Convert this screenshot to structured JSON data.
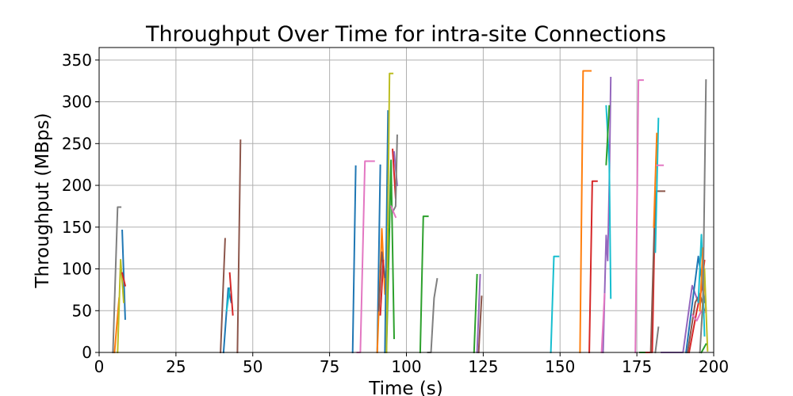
{
  "chart_data": {
    "type": "line",
    "title": "Throughput Over Time for intra-site Connections",
    "xlabel": "Time (s)",
    "ylabel": "Throughput (MBps)",
    "xlim": [
      0,
      200
    ],
    "ylim": [
      0,
      365
    ],
    "xticks": [
      0,
      25,
      50,
      75,
      100,
      125,
      150,
      175,
      200
    ],
    "yticks": [
      0,
      50,
      100,
      150,
      200,
      250,
      300,
      350
    ],
    "grid": true,
    "series": [
      {
        "color": "#1f77b4",
        "points": [
          [
            7.5,
            146
          ],
          [
            8.5,
            40
          ]
        ]
      },
      {
        "color": "#ff7f0e",
        "points": [
          [
            5,
            0
          ],
          [
            6.5,
            65
          ]
        ]
      },
      {
        "color": "#bcbd22",
        "points": [
          [
            6,
            0
          ],
          [
            7,
            111
          ],
          [
            8,
            60
          ]
        ]
      },
      {
        "color": "#7f7f7f",
        "points": [
          [
            4.5,
            0
          ],
          [
            6,
            174
          ],
          [
            7,
            174
          ]
        ]
      },
      {
        "color": "#d62728",
        "points": [
          [
            7.5,
            95
          ],
          [
            8.5,
            80
          ]
        ]
      },
      {
        "color": "#1f77b4",
        "points": [
          [
            40.5,
            0
          ],
          [
            42,
            77
          ],
          [
            43,
            60
          ]
        ]
      },
      {
        "color": "#17becf",
        "points": [
          [
            41.5,
            50
          ],
          [
            42.5,
            77
          ]
        ]
      },
      {
        "color": "#d62728",
        "points": [
          [
            42.5,
            95
          ],
          [
            43.5,
            45
          ]
        ]
      },
      {
        "color": "#8c564b",
        "points": [
          [
            39.5,
            0
          ],
          [
            41,
            136
          ]
        ]
      },
      {
        "color": "#8c564b",
        "points": [
          [
            45,
            0
          ],
          [
            46,
            254
          ]
        ]
      },
      {
        "color": "#1f77b4",
        "points": [
          [
            82.5,
            0
          ],
          [
            83.5,
            223
          ]
        ]
      },
      {
        "color": "#e377c2",
        "points": [
          [
            84,
            0
          ],
          [
            85,
            0
          ],
          [
            86.5,
            229
          ],
          [
            89.5,
            229
          ]
        ]
      },
      {
        "color": "#1f77b4",
        "points": [
          [
            90.5,
            0
          ],
          [
            91.5,
            224
          ]
        ]
      },
      {
        "color": "#ff7f0e",
        "points": [
          [
            90.5,
            0
          ],
          [
            92,
            148
          ],
          [
            93,
            70
          ]
        ]
      },
      {
        "color": "#8c564b",
        "points": [
          [
            91,
            50
          ],
          [
            92,
            120
          ],
          [
            93,
            90
          ]
        ]
      },
      {
        "color": "#d62728",
        "points": [
          [
            91.5,
            45
          ],
          [
            92.5,
            110
          ]
        ]
      },
      {
        "color": "#2ca02c",
        "points": [
          [
            93.5,
            0
          ],
          [
            95,
            230
          ],
          [
            96,
            17
          ]
        ]
      },
      {
        "color": "#1f77b4",
        "points": [
          [
            93,
            0
          ],
          [
            94,
            289
          ]
        ]
      },
      {
        "color": "#bcbd22",
        "points": [
          [
            93.5,
            0
          ],
          [
            94.5,
            334
          ],
          [
            95.5,
            334
          ]
        ]
      },
      {
        "color": "#d62728",
        "points": [
          [
            95.5,
            243
          ],
          [
            96.5,
            185
          ]
        ]
      },
      {
        "color": "#9467bd",
        "points": [
          [
            96,
            240
          ],
          [
            97,
            200
          ]
        ]
      },
      {
        "color": "#7f7f7f",
        "points": [
          [
            95.5,
            168
          ],
          [
            96.5,
            175
          ],
          [
            97,
            260
          ]
        ]
      },
      {
        "color": "#e377c2",
        "points": [
          [
            95,
            175
          ],
          [
            96.5,
            162
          ]
        ]
      },
      {
        "color": "#2ca02c",
        "points": [
          [
            104.5,
            0
          ],
          [
            105.5,
            163
          ],
          [
            107,
            163
          ]
        ]
      },
      {
        "color": "#7f7f7f",
        "points": [
          [
            107,
            0
          ],
          [
            108,
            0
          ],
          [
            109,
            65
          ],
          [
            110,
            88
          ]
        ]
      },
      {
        "color": "#2ca02c",
        "points": [
          [
            122,
            0
          ],
          [
            123,
            93
          ]
        ]
      },
      {
        "color": "#9467bd",
        "points": [
          [
            123,
            0
          ],
          [
            124,
            93
          ]
        ]
      },
      {
        "color": "#8c564b",
        "points": [
          [
            123.5,
            0
          ],
          [
            124.5,
            67
          ]
        ]
      },
      {
        "color": "#17becf",
        "points": [
          [
            147,
            0
          ],
          [
            148,
            115
          ],
          [
            149.5,
            115
          ]
        ]
      },
      {
        "color": "#ff7f0e",
        "points": [
          [
            156.5,
            0
          ],
          [
            157.5,
            337
          ],
          [
            160,
            337
          ]
        ]
      },
      {
        "color": "#d62728",
        "points": [
          [
            159.5,
            0
          ],
          [
            160.5,
            205
          ],
          [
            162,
            205
          ]
        ]
      },
      {
        "color": "#9467bd",
        "points": [
          [
            164,
            0
          ],
          [
            165,
            140
          ],
          [
            165.5,
            110
          ],
          [
            166,
            200
          ],
          [
            166.5,
            329
          ]
        ]
      },
      {
        "color": "#17becf",
        "points": [
          [
            165,
            295
          ],
          [
            166,
            226
          ],
          [
            166.5,
            65
          ]
        ]
      },
      {
        "color": "#2ca02c",
        "points": [
          [
            165,
            225
          ],
          [
            166,
            295
          ]
        ]
      },
      {
        "color": "#e377c2",
        "points": [
          [
            163.5,
            0
          ],
          [
            164.5,
            70
          ]
        ]
      },
      {
        "color": "#e377c2",
        "points": [
          [
            174.5,
            0
          ],
          [
            175.5,
            326
          ],
          [
            177,
            326
          ]
        ]
      },
      {
        "color": "#2ca02c",
        "points": [
          [
            176,
            0
          ],
          [
            178,
            0
          ]
        ]
      },
      {
        "color": "#d62728",
        "points": [
          [
            178,
            0
          ],
          [
            180,
            0
          ],
          [
            181,
            190
          ]
        ]
      },
      {
        "color": "#8c564b",
        "points": [
          [
            179.5,
            0
          ],
          [
            181,
            193
          ],
          [
            184,
            193
          ]
        ]
      },
      {
        "color": "#17becf",
        "points": [
          [
            181,
            120
          ],
          [
            182,
            280
          ]
        ]
      },
      {
        "color": "#ff7f0e",
        "points": [
          [
            180.5,
            150
          ],
          [
            181.5,
            262
          ]
        ]
      },
      {
        "color": "#e377c2",
        "points": [
          [
            181.5,
            224
          ],
          [
            183.5,
            224
          ]
        ]
      },
      {
        "color": "#7f7f7f",
        "points": [
          [
            181,
            0
          ],
          [
            182,
            30
          ]
        ]
      },
      {
        "color": "#9467bd",
        "points": [
          [
            183,
            0
          ],
          [
            190,
            0
          ],
          [
            193,
            80
          ],
          [
            195,
            60
          ]
        ]
      },
      {
        "color": "#1f77b4",
        "points": [
          [
            191,
            0
          ],
          [
            195,
            115
          ],
          [
            196,
            90
          ],
          [
            197,
            60
          ]
        ]
      },
      {
        "color": "#8c564b",
        "points": [
          [
            191.5,
            0
          ],
          [
            194,
            60
          ],
          [
            195.5,
            70
          ],
          [
            197,
            50
          ]
        ]
      },
      {
        "color": "#d62728",
        "points": [
          [
            192,
            0
          ],
          [
            194.5,
            50
          ],
          [
            196,
            75
          ],
          [
            197,
            110
          ]
        ]
      },
      {
        "color": "#e377c2",
        "points": [
          [
            193,
            45
          ],
          [
            194.5,
            38
          ],
          [
            196,
            50
          ],
          [
            197,
            48
          ]
        ]
      },
      {
        "color": "#17becf",
        "points": [
          [
            195,
            60
          ],
          [
            196,
            141
          ],
          [
            197,
            20
          ]
        ]
      },
      {
        "color": "#ff7f0e",
        "points": [
          [
            195.5,
            50
          ],
          [
            196.5,
            125
          ],
          [
            197.5,
            50
          ]
        ]
      },
      {
        "color": "#bcbd22",
        "points": [
          [
            196,
            30
          ],
          [
            197,
            100
          ],
          [
            198,
            2
          ]
        ]
      },
      {
        "color": "#7f7f7f",
        "points": [
          [
            195.5,
            0
          ],
          [
            196.5,
            60
          ],
          [
            197.5,
            326
          ]
        ]
      },
      {
        "color": "#2ca02c",
        "points": [
          [
            196,
            0
          ],
          [
            197.5,
            10
          ]
        ]
      }
    ]
  }
}
